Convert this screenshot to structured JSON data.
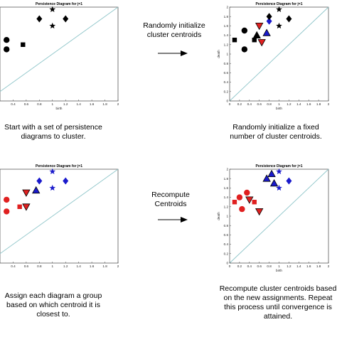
{
  "plot_title": "Persistence Diagram for j=1",
  "axis": {
    "xlabel": "birth",
    "ylabel": "death",
    "xticks": [
      "0.4",
      "0.6",
      "0.8",
      "1",
      "1.2",
      "1.4",
      "1.6",
      "1.8",
      "2"
    ],
    "xticks_full": [
      "0",
      "0.2",
      "0.4",
      "0.6",
      "0.8",
      "1",
      "1.2",
      "1.4",
      "1.6",
      "1.8",
      "2"
    ],
    "yticks": [
      "0",
      "0.2",
      "0.4",
      "0.6",
      "0.8",
      "1",
      "1.2",
      "1.4",
      "1.6",
      "1.8",
      "2"
    ]
  },
  "arrows": {
    "top": "Randomly initialize cluster centroids",
    "bottom": "Recompute Centroids"
  },
  "captions": {
    "top_left": "Start with a set of persistence diagrams to cluster.",
    "top_right": "Randomly initialize a fixed number of cluster centroids.",
    "bottom_left": "Assign each diagram a group based on which centroid it is closest to.",
    "bottom_right": "Recompute cluster centroids based on the new assignments. Repeat this process until convergence is attained."
  },
  "colors": {
    "black": "#000000",
    "red": "#e02020",
    "blue": "#1a1acc",
    "diag": "#8ec5c9"
  },
  "chart_data": [
    {
      "type": "scatter",
      "title": "Persistence Diagram for j=1",
      "xlabel": "birth",
      "xlim": [
        0.2,
        2
      ],
      "ylim": [
        0,
        2
      ],
      "yticks_shown": false,
      "points": [
        {
          "x": 0.3,
          "y": 1.3,
          "marker": "circle",
          "color": "black"
        },
        {
          "x": 0.3,
          "y": 1.1,
          "marker": "circle",
          "color": "black"
        },
        {
          "x": 0.55,
          "y": 1.2,
          "marker": "square",
          "color": "black"
        },
        {
          "x": 0.8,
          "y": 1.75,
          "marker": "diamond",
          "color": "black"
        },
        {
          "x": 1.0,
          "y": 1.95,
          "marker": "star",
          "color": "black"
        },
        {
          "x": 1.0,
          "y": 1.6,
          "marker": "star",
          "color": "black"
        },
        {
          "x": 1.2,
          "y": 1.75,
          "marker": "diamond",
          "color": "black"
        }
      ]
    },
    {
      "type": "scatter",
      "title": "Persistence Diagram for j=1",
      "xlabel": "birth",
      "ylabel": "death",
      "xlim": [
        0,
        2
      ],
      "ylim": [
        0,
        2
      ],
      "points": [
        {
          "x": 0.1,
          "y": 1.3,
          "marker": "square",
          "color": "black"
        },
        {
          "x": 0.3,
          "y": 1.5,
          "marker": "circle",
          "color": "black"
        },
        {
          "x": 0.3,
          "y": 1.1,
          "marker": "circle",
          "color": "black"
        },
        {
          "x": 0.5,
          "y": 1.3,
          "marker": "square",
          "color": "black"
        },
        {
          "x": 0.55,
          "y": 1.4,
          "marker": "triangle-up",
          "color": "black"
        },
        {
          "x": 0.6,
          "y": 1.6,
          "marker": "triangle-down",
          "color": "red"
        },
        {
          "x": 0.65,
          "y": 1.25,
          "marker": "triangle-down",
          "color": "red"
        },
        {
          "x": 0.75,
          "y": 1.45,
          "marker": "triangle-up",
          "color": "blue"
        },
        {
          "x": 0.8,
          "y": 1.7,
          "marker": "diamond",
          "color": "blue"
        },
        {
          "x": 0.8,
          "y": 1.8,
          "marker": "diamond",
          "color": "black"
        },
        {
          "x": 1.0,
          "y": 1.95,
          "marker": "star",
          "color": "black"
        },
        {
          "x": 1.0,
          "y": 1.6,
          "marker": "star",
          "color": "black"
        },
        {
          "x": 1.2,
          "y": 1.75,
          "marker": "diamond",
          "color": "black"
        }
      ]
    },
    {
      "type": "scatter",
      "title": "Persistence Diagram for j=1",
      "xlabel": "",
      "xlim": [
        0.2,
        2
      ],
      "ylim": [
        0,
        2
      ],
      "yticks_shown": false,
      "points": [
        {
          "x": 0.3,
          "y": 1.35,
          "marker": "circle",
          "color": "red"
        },
        {
          "x": 0.3,
          "y": 1.1,
          "marker": "circle",
          "color": "red"
        },
        {
          "x": 0.5,
          "y": 1.2,
          "marker": "square",
          "color": "red"
        },
        {
          "x": 0.6,
          "y": 1.5,
          "marker": "triangle-down",
          "color": "red"
        },
        {
          "x": 0.6,
          "y": 1.2,
          "marker": "triangle-down",
          "color": "red"
        },
        {
          "x": 0.75,
          "y": 1.55,
          "marker": "triangle-up",
          "color": "blue"
        },
        {
          "x": 0.8,
          "y": 1.75,
          "marker": "diamond",
          "color": "blue"
        },
        {
          "x": 1.0,
          "y": 1.95,
          "marker": "star",
          "color": "blue"
        },
        {
          "x": 1.0,
          "y": 1.6,
          "marker": "star",
          "color": "blue"
        },
        {
          "x": 1.2,
          "y": 1.75,
          "marker": "diamond",
          "color": "blue"
        }
      ]
    },
    {
      "type": "scatter",
      "title": "Persistence Diagram for j=1",
      "xlabel": "birth",
      "ylabel": "death",
      "xlim": [
        0,
        2
      ],
      "ylim": [
        0,
        2
      ],
      "points": [
        {
          "x": 0.1,
          "y": 1.3,
          "marker": "square",
          "color": "red"
        },
        {
          "x": 0.2,
          "y": 1.4,
          "marker": "circle",
          "color": "red"
        },
        {
          "x": 0.25,
          "y": 1.15,
          "marker": "circle",
          "color": "red"
        },
        {
          "x": 0.35,
          "y": 1.5,
          "marker": "circle",
          "color": "red"
        },
        {
          "x": 0.4,
          "y": 1.35,
          "marker": "triangle-down",
          "color": "red"
        },
        {
          "x": 0.5,
          "y": 1.3,
          "marker": "square",
          "color": "red"
        },
        {
          "x": 0.6,
          "y": 1.1,
          "marker": "triangle-down",
          "color": "red"
        },
        {
          "x": 0.75,
          "y": 1.8,
          "marker": "triangle-up",
          "color": "blue"
        },
        {
          "x": 0.85,
          "y": 1.9,
          "marker": "triangle-up",
          "color": "blue"
        },
        {
          "x": 0.9,
          "y": 1.7,
          "marker": "triangle-up",
          "color": "blue"
        },
        {
          "x": 1.0,
          "y": 1.95,
          "marker": "star",
          "color": "blue"
        },
        {
          "x": 1.0,
          "y": 1.6,
          "marker": "star",
          "color": "blue"
        },
        {
          "x": 1.2,
          "y": 1.75,
          "marker": "diamond",
          "color": "blue"
        }
      ]
    }
  ]
}
